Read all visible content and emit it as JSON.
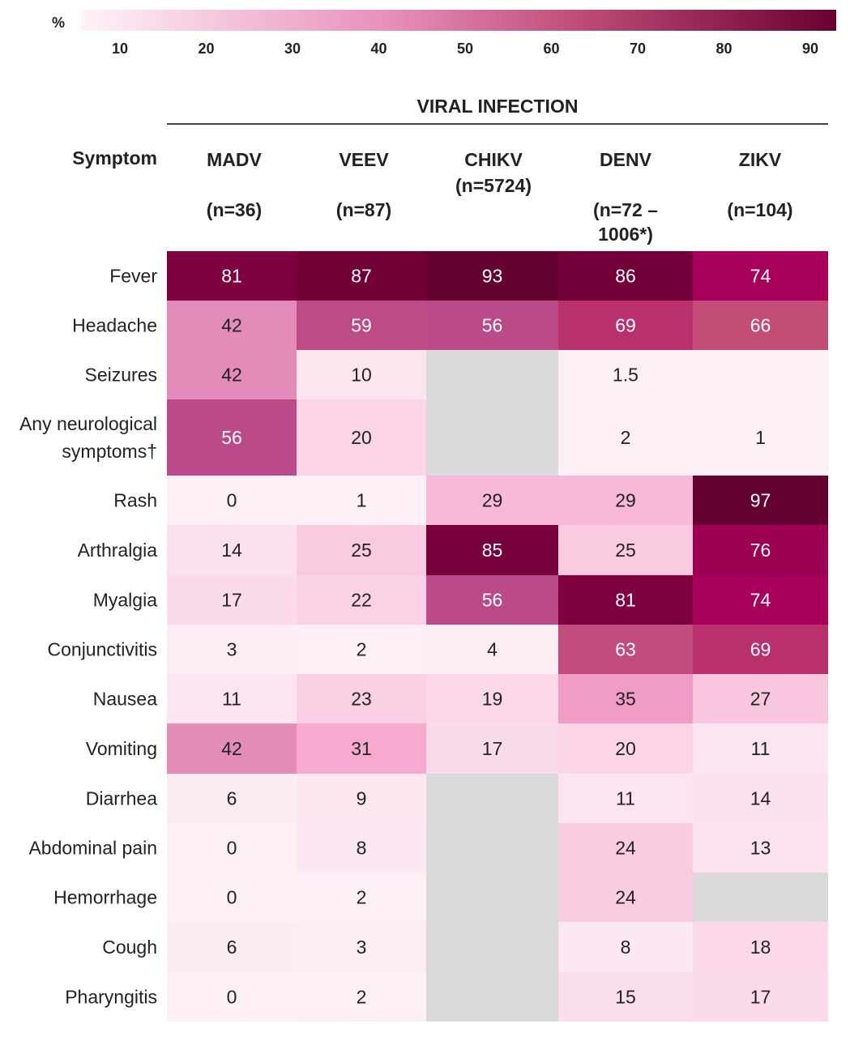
{
  "legend": {
    "unit": "%",
    "ticks": [
      10,
      20,
      30,
      40,
      50,
      60,
      70,
      80,
      90
    ],
    "color_low": "#fff3f8",
    "color_high": "#6b0030"
  },
  "chart_data": {
    "type": "heatmap",
    "title": "",
    "column_group_label": "VIRAL INFECTION",
    "row_header": "Symptom",
    "columns": [
      {
        "name": "MADV",
        "n": "(n=36)"
      },
      {
        "name": "VEEV",
        "n": "(n=87)"
      },
      {
        "name": "CHIKV",
        "n": "(n=5724)"
      },
      {
        "name": "DENV",
        "n": "(n=72 –\n1006*)"
      },
      {
        "name": "ZIKV",
        "n": "(n=104)"
      }
    ],
    "rows": [
      {
        "label": [
          "Fever"
        ],
        "values": [
          81,
          87,
          93,
          86,
          74
        ]
      },
      {
        "label": [
          "Headache"
        ],
        "values": [
          42,
          59,
          56,
          69,
          66
        ]
      },
      {
        "label": [
          "Seizures"
        ],
        "values": [
          42,
          10,
          null,
          1.5,
          ""
        ]
      },
      {
        "label": [
          "Any neurological",
          "symptoms†"
        ],
        "values": [
          56,
          20,
          null,
          2,
          1
        ]
      },
      {
        "label": [
          "Rash"
        ],
        "values": [
          0,
          1,
          29,
          29,
          97
        ]
      },
      {
        "label": [
          "Arthralgia"
        ],
        "values": [
          14,
          25,
          85,
          25,
          76
        ]
      },
      {
        "label": [
          "Myalgia"
        ],
        "values": [
          17,
          22,
          56,
          81,
          74
        ]
      },
      {
        "label": [
          "Conjunctivitis"
        ],
        "values": [
          3,
          2,
          4,
          63,
          69
        ]
      },
      {
        "label": [
          "Nausea"
        ],
        "values": [
          11,
          23,
          19,
          35,
          27
        ]
      },
      {
        "label": [
          "Vomiting"
        ],
        "values": [
          42,
          31,
          17,
          20,
          11
        ]
      },
      {
        "label": [
          "Diarrhea"
        ],
        "values": [
          6,
          9,
          null,
          11,
          14
        ]
      },
      {
        "label": [
          "Abdominal pain"
        ],
        "values": [
          0,
          8,
          null,
          24,
          13
        ]
      },
      {
        "label": [
          "Hemorrhage"
        ],
        "values": [
          0,
          2,
          null,
          24,
          null
        ]
      },
      {
        "label": [
          "Cough"
        ],
        "values": [
          6,
          3,
          null,
          8,
          18
        ]
      },
      {
        "label": [
          "Pharyngitis"
        ],
        "values": [
          0,
          2,
          null,
          15,
          17
        ]
      }
    ],
    "missing_color": "#d9d9d9",
    "color_scale": [
      {
        "v": 0,
        "c": "#fdf1f7"
      },
      {
        "v": 12,
        "c": "#fbe4ef"
      },
      {
        "v": 20,
        "c": "#fbd5e7"
      },
      {
        "v": 27,
        "c": "#f9c6df"
      },
      {
        "v": 32,
        "c": "#f6a3cb"
      },
      {
        "v": 42,
        "c": "#e48cb9"
      },
      {
        "v": 56,
        "c": "#bb4a8b"
      },
      {
        "v": 66,
        "c": "#c24e78"
      },
      {
        "v": 74,
        "c": "#a6005a"
      },
      {
        "v": 81,
        "c": "#7f003e"
      },
      {
        "v": 93,
        "c": "#63002f"
      }
    ]
  }
}
